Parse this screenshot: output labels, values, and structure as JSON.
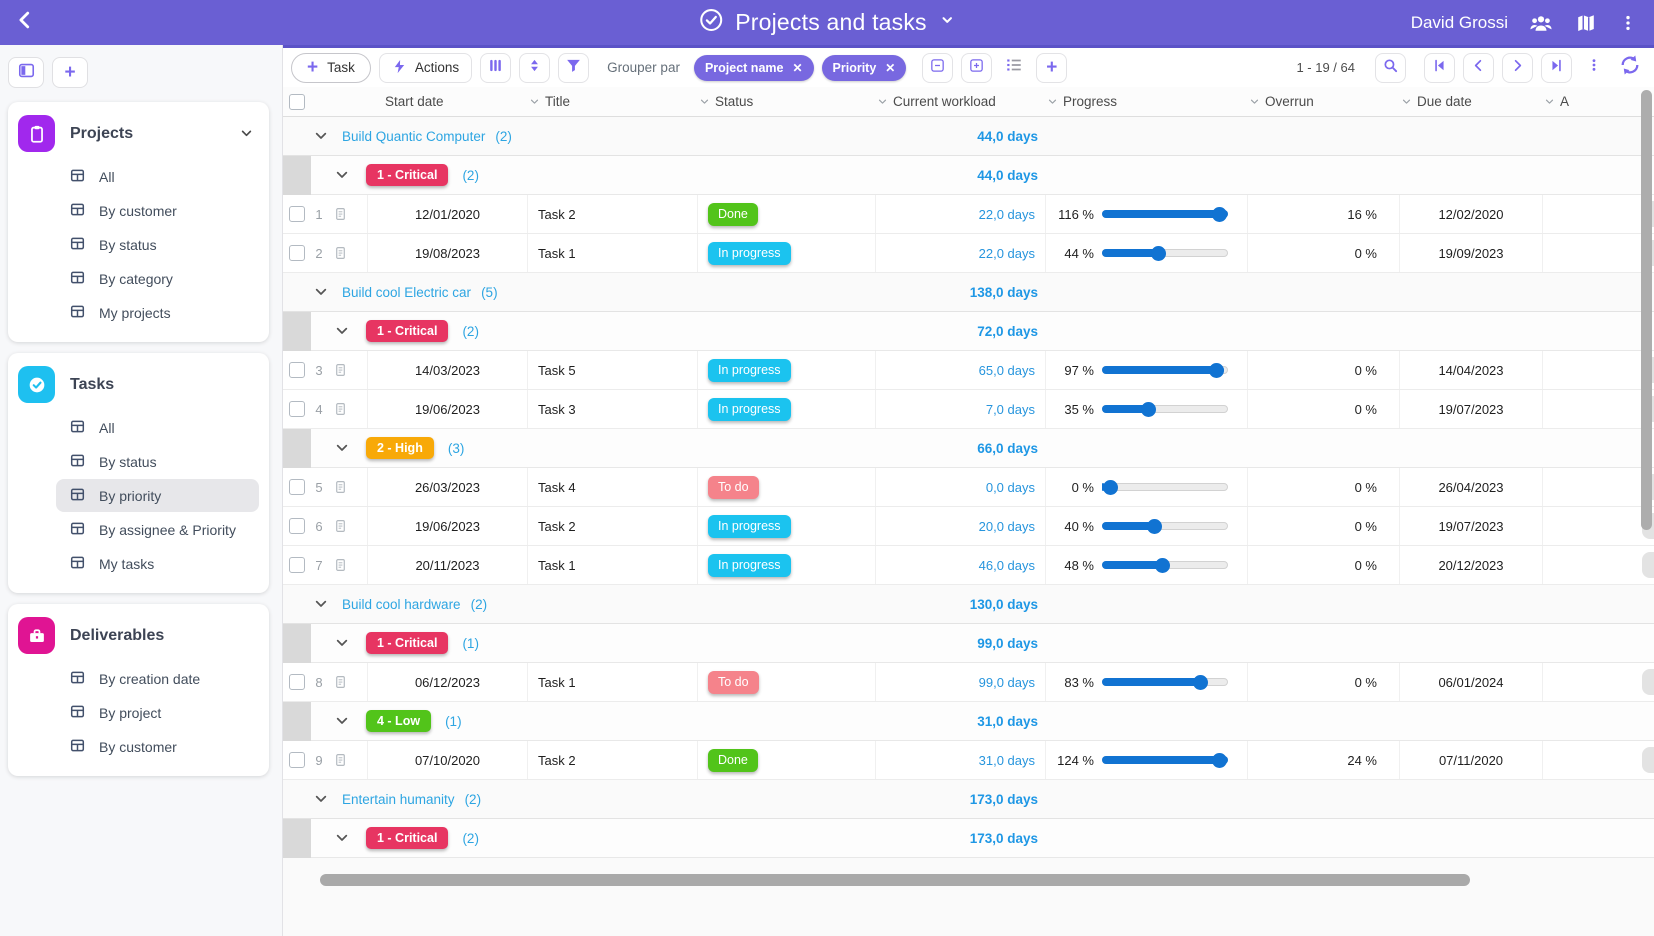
{
  "topbar": {
    "title": "Projects and tasks",
    "user": "David Grossi"
  },
  "sidebar": {
    "sections": [
      {
        "title": "Projects",
        "icon": "clipboard-icon",
        "glyph": "clipboard",
        "color": "#a128ed",
        "chevron": true,
        "selected": "",
        "items": [
          "All",
          "By customer",
          "By status",
          "By category",
          "My projects"
        ]
      },
      {
        "title": "Tasks",
        "icon": "check-circle-icon",
        "glyph": "check",
        "color": "#1ec0f0",
        "chevron": false,
        "selected": "By priority",
        "items": [
          "All",
          "By status",
          "By priority",
          "By assignee & Priority",
          "My tasks"
        ]
      },
      {
        "title": "Deliverables",
        "icon": "briefcase-icon",
        "glyph": "briefcase",
        "color": "#e01493",
        "chevron": false,
        "selected": "",
        "items": [
          "By creation date",
          "By project",
          "By customer"
        ]
      }
    ]
  },
  "toolbar": {
    "task_label": "Task",
    "actions_label": "Actions",
    "group_by_label": "Grouper par",
    "group_chips": [
      "Project name",
      "Priority"
    ],
    "range": "1 - 19 / 64"
  },
  "table": {
    "columns": [
      "Start date",
      "Title",
      "Status",
      "Current workload",
      "Progress",
      "Overrun",
      "Due date",
      "A"
    ],
    "status_colors": {
      "Done": "#52c41a",
      "In progress": "#1bc3ef",
      "To do": "#f5838b"
    },
    "rows": [
      {
        "type": "group",
        "label": "Build Quantic Computer",
        "count": "(2)",
        "workload": "44,0 days"
      },
      {
        "type": "subgroup",
        "badge": "1 - Critical",
        "badge_color": "#e73562",
        "count": "(2)",
        "workload": "44,0 days"
      },
      {
        "type": "task",
        "num": "1",
        "start": "12/01/2020",
        "title": "Task 2",
        "status": "Done",
        "workload": "22,0 days",
        "progress": 116,
        "progress_label": "116 %",
        "overrun": "16 %",
        "due": "12/02/2020"
      },
      {
        "type": "task",
        "num": "2",
        "start": "19/08/2023",
        "title": "Task 1",
        "status": "In progress",
        "workload": "22,0 days",
        "progress": 44,
        "progress_label": "44 %",
        "overrun": "0 %",
        "due": "19/09/2023"
      },
      {
        "type": "group",
        "label": "Build cool Electric car",
        "count": "(5)",
        "workload": "138,0 days"
      },
      {
        "type": "subgroup",
        "badge": "1 - Critical",
        "badge_color": "#e73562",
        "count": "(2)",
        "workload": "72,0 days"
      },
      {
        "type": "task",
        "num": "3",
        "start": "14/03/2023",
        "title": "Task 5",
        "status": "In progress",
        "workload": "65,0 days",
        "progress": 97,
        "progress_label": "97 %",
        "overrun": "0 %",
        "due": "14/04/2023"
      },
      {
        "type": "task",
        "num": "4",
        "start": "19/06/2023",
        "title": "Task 3",
        "status": "In progress",
        "workload": "7,0 days",
        "progress": 35,
        "progress_label": "35 %",
        "overrun": "0 %",
        "due": "19/07/2023"
      },
      {
        "type": "subgroup",
        "badge": "2 - High",
        "badge_color": "#f8a908",
        "count": "(3)",
        "workload": "66,0 days"
      },
      {
        "type": "task",
        "num": "5",
        "start": "26/03/2023",
        "title": "Task 4",
        "status": "To do",
        "workload": "0,0 days",
        "progress": 0,
        "progress_label": "0 %",
        "overrun": "0 %",
        "due": "26/04/2023"
      },
      {
        "type": "task",
        "num": "6",
        "start": "19/06/2023",
        "title": "Task 2",
        "status": "In progress",
        "workload": "20,0 days",
        "progress": 40,
        "progress_label": "40 %",
        "overrun": "0 %",
        "due": "19/07/2023"
      },
      {
        "type": "task",
        "num": "7",
        "start": "20/11/2023",
        "title": "Task 1",
        "status": "In progress",
        "workload": "46,0 days",
        "progress": 48,
        "progress_label": "48 %",
        "overrun": "0 %",
        "due": "20/12/2023"
      },
      {
        "type": "group",
        "label": "Build cool hardware",
        "count": "(2)",
        "workload": "130,0 days"
      },
      {
        "type": "subgroup",
        "badge": "1 - Critical",
        "badge_color": "#e73562",
        "count": "(1)",
        "workload": "99,0 days"
      },
      {
        "type": "task",
        "num": "8",
        "start": "06/12/2023",
        "title": "Task 1",
        "status": "To do",
        "workload": "99,0 days",
        "progress": 83,
        "progress_label": "83 %",
        "overrun": "0 %",
        "due": "06/01/2024"
      },
      {
        "type": "subgroup",
        "badge": "4 - Low",
        "badge_color": "#52c41a",
        "count": "(1)",
        "workload": "31,0 days"
      },
      {
        "type": "task",
        "num": "9",
        "start": "07/10/2020",
        "title": "Task 2",
        "status": "Done",
        "workload": "31,0 days",
        "progress": 124,
        "progress_label": "124 %",
        "overrun": "24 %",
        "due": "07/11/2020"
      },
      {
        "type": "group",
        "label": "Entertain humanity",
        "count": "(2)",
        "workload": "173,0 days"
      },
      {
        "type": "subgroup",
        "badge": "1 - Critical",
        "badge_color": "#e73562",
        "count": "(2)",
        "workload": "173,0 days"
      }
    ]
  },
  "colors": {
    "header_purple": "#6a5fd3",
    "accent_purple": "#7b68ee",
    "chip_purple": "#7868e0",
    "link_blue": "#2da5e2",
    "aggregate_blue": "#1e97e5",
    "progress_blue": "#1173d2",
    "critical_red": "#e73562",
    "high_orange": "#f8a908",
    "low_green": "#52c41a",
    "done_green": "#52c41a",
    "in_progress_cyan": "#1bc3ef",
    "todo_salmon": "#f5838b"
  }
}
